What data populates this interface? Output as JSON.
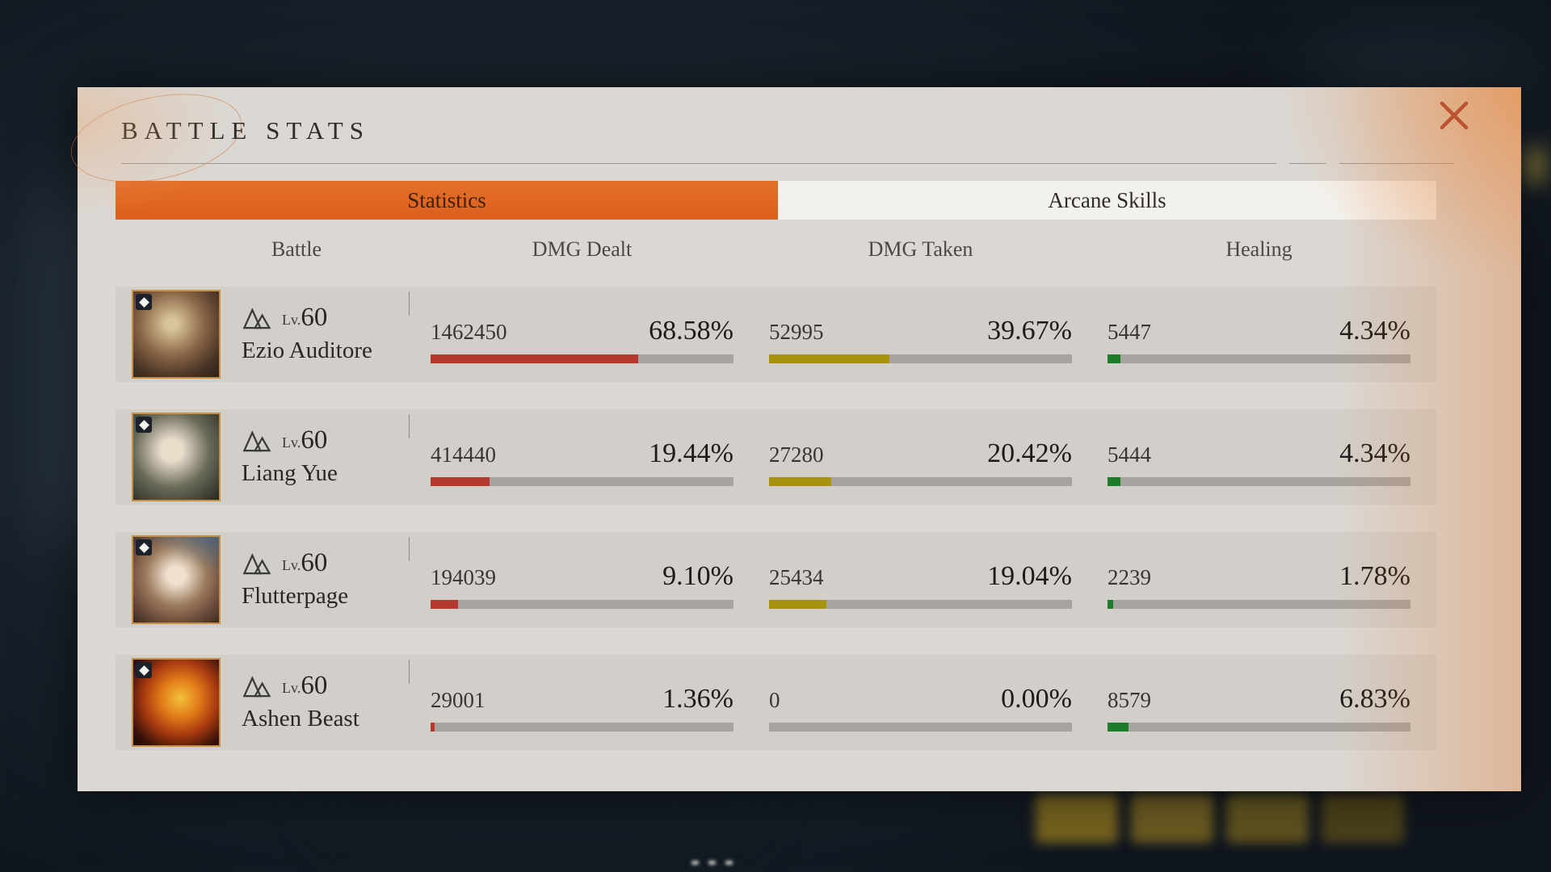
{
  "panel": {
    "title": "BATTLE STATS"
  },
  "tabs": {
    "statistics": "Statistics",
    "arcane_skills": "Arcane Skills"
  },
  "columns": [
    "Battle",
    "DMG Dealt",
    "DMG Taken",
    "Healing"
  ],
  "colors": {
    "accent_orange": "#e06a24",
    "close_icon": "#bb5230",
    "dealt": "#b23a30",
    "taken": "#a8920f",
    "healing": "#1e7b2c"
  },
  "rows": [
    {
      "badge_icon": "sparkle-badge-icon",
      "level_label": "Lv.",
      "level": "60",
      "name": "Ezio Auditore",
      "dealt": {
        "value": "1462450",
        "pct": "68.58%",
        "pct_num": 68.58
      },
      "taken": {
        "value": "52995",
        "pct": "39.67%",
        "pct_num": 39.67
      },
      "healing": {
        "value": "5447",
        "pct": "4.34%",
        "pct_num": 4.34
      }
    },
    {
      "badge_icon": "sparkle-badge-icon",
      "level_label": "Lv.",
      "level": "60",
      "name": "Liang Yue",
      "dealt": {
        "value": "414440",
        "pct": "19.44%",
        "pct_num": 19.44
      },
      "taken": {
        "value": "27280",
        "pct": "20.42%",
        "pct_num": 20.42
      },
      "healing": {
        "value": "5444",
        "pct": "4.34%",
        "pct_num": 4.34
      }
    },
    {
      "badge_icon": "sparkle-badge-icon",
      "level_label": "Lv.",
      "level": "60",
      "name": "Flutterpage",
      "dealt": {
        "value": "194039",
        "pct": "9.10%",
        "pct_num": 9.1
      },
      "taken": {
        "value": "25434",
        "pct": "19.04%",
        "pct_num": 19.04
      },
      "healing": {
        "value": "2239",
        "pct": "1.78%",
        "pct_num": 1.78
      }
    },
    {
      "badge_icon": "beast-badge-icon",
      "level_label": "Lv.",
      "level": "60",
      "name": "Ashen Beast",
      "dealt": {
        "value": "29001",
        "pct": "1.36%",
        "pct_num": 1.36
      },
      "taken": {
        "value": "0",
        "pct": "0.00%",
        "pct_num": 0
      },
      "healing": {
        "value": "8579",
        "pct": "6.83%",
        "pct_num": 6.83
      }
    }
  ]
}
